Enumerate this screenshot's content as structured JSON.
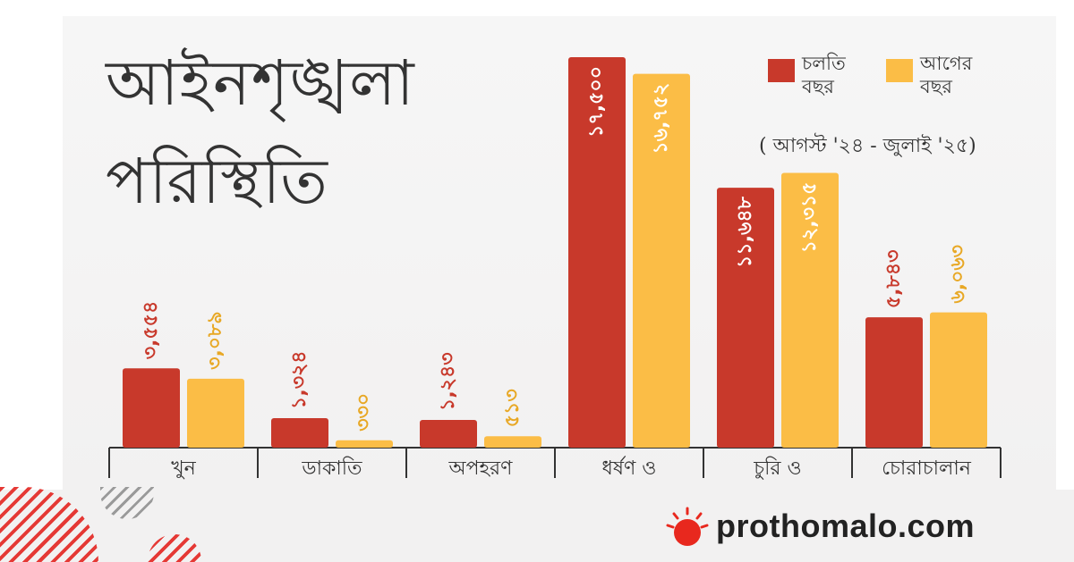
{
  "title_line1": "আইনশৃঙ্খলা",
  "title_line2": "পরিস্থিতি",
  "legend": {
    "current_label_1": "চলতি",
    "current_label_2": "বছর",
    "previous_label_1": "আগের",
    "previous_label_2": "বছর"
  },
  "period": "( আগস্ট '২৪ - জুলাই '২৫)",
  "brand": "prothomalo.com",
  "colors": {
    "current": "#c8392b",
    "previous": "#fbbd46",
    "brand_red": "#e8281e"
  },
  "chart_data": {
    "type": "bar",
    "categories": [
      "খুন",
      "ডাকাতি",
      "অপহরণ",
      "ধর্ষণ ও",
      "চুরি ও",
      "চোরাচালান"
    ],
    "series": [
      {
        "name": "চলতি বছর",
        "values": [
          3554,
          1324,
          1243,
          17500,
          11648,
          5843
        ],
        "labels": [
          "৩,৫৫৪",
          "১,৩২৪",
          "১,২৪৩",
          "১৭,৫০০",
          "১১,৬৪৮",
          "৫,৮৪৩"
        ]
      },
      {
        "name": "আগের বছর",
        "values": [
          3089,
          330,
          513,
          16752,
          12315,
          6063
        ],
        "labels": [
          "৩,০৮৯",
          "৩৩০",
          "৫১৩",
          "১৬,৭৫২",
          "১২,৩১৫",
          "৬,০৬৩"
        ]
      }
    ],
    "ylim": [
      0,
      17500
    ],
    "grid": false,
    "legend_position": "top-right"
  }
}
